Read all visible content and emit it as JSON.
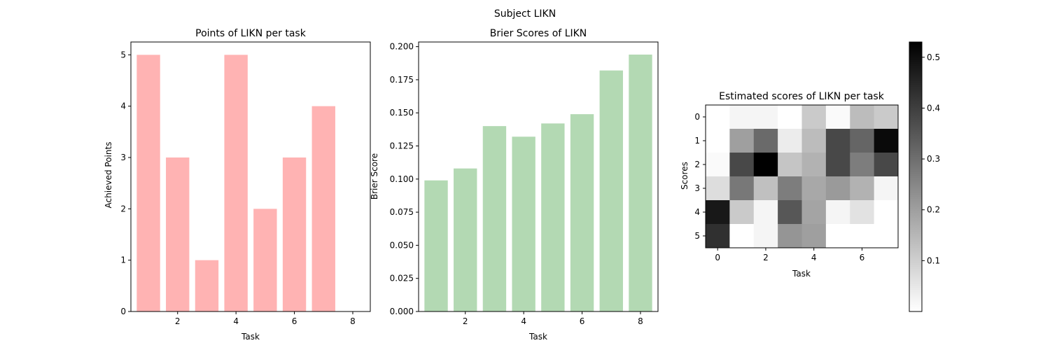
{
  "figure": {
    "suptitle": "Subject LIKN"
  },
  "chart_data": [
    {
      "type": "bar",
      "title": "Points of LIKN per task",
      "xlabel": "Task",
      "ylabel": "Achieved Points",
      "color": "#ffb3b3",
      "x": [
        1,
        2,
        3,
        4,
        5,
        6,
        7,
        8
      ],
      "values": [
        5,
        3,
        1,
        5,
        2,
        3,
        4,
        0
      ],
      "xlim": [
        0.4,
        8.6
      ],
      "ylim": [
        0,
        5.25
      ],
      "xticks": [
        "2",
        "4",
        "6",
        "8"
      ],
      "yticks": [
        "0",
        "1",
        "2",
        "3",
        "4",
        "5"
      ]
    },
    {
      "type": "bar",
      "title": "Brier Scores of LIKN",
      "xlabel": "Task",
      "ylabel": "Brier Score",
      "color": "#b3d9b3",
      "x": [
        1,
        2,
        3,
        4,
        5,
        6,
        7,
        8
      ],
      "values": [
        0.099,
        0.108,
        0.14,
        0.132,
        0.142,
        0.149,
        0.182,
        0.194
      ],
      "xlim": [
        0.4,
        8.6
      ],
      "ylim": [
        0,
        0.2035
      ],
      "xticks": [
        "2",
        "4",
        "6",
        "8"
      ],
      "yticks": [
        "0.000",
        "0.025",
        "0.050",
        "0.075",
        "0.100",
        "0.125",
        "0.150",
        "0.175",
        "0.200"
      ]
    },
    {
      "type": "heatmap",
      "title": "Estimated scores of LIKN per task",
      "xlabel": "Task",
      "ylabel": "Scores",
      "colormap": "gray_r",
      "vmin": 0.0,
      "vmax": 0.53,
      "xticks": [
        "0",
        "2",
        "4",
        "6"
      ],
      "yticks": [
        "0",
        "1",
        "2",
        "3",
        "4",
        "5"
      ],
      "colorbar_ticks": [
        "0.1",
        "0.2",
        "0.3",
        "0.4",
        "0.5"
      ],
      "values": [
        [
          0.0,
          0.02,
          0.02,
          0.0,
          0.11,
          0.01,
          0.14,
          0.11
        ],
        [
          0.0,
          0.2,
          0.31,
          0.04,
          0.14,
          0.38,
          0.32,
          0.51
        ],
        [
          0.01,
          0.38,
          0.53,
          0.12,
          0.16,
          0.38,
          0.27,
          0.38
        ],
        [
          0.07,
          0.28,
          0.13,
          0.27,
          0.18,
          0.21,
          0.16,
          0.02
        ],
        [
          0.48,
          0.11,
          0.02,
          0.35,
          0.19,
          0.02,
          0.06,
          0.0
        ],
        [
          0.43,
          0.0,
          0.02,
          0.22,
          0.2,
          0.0,
          0.0,
          0.0
        ]
      ]
    }
  ]
}
